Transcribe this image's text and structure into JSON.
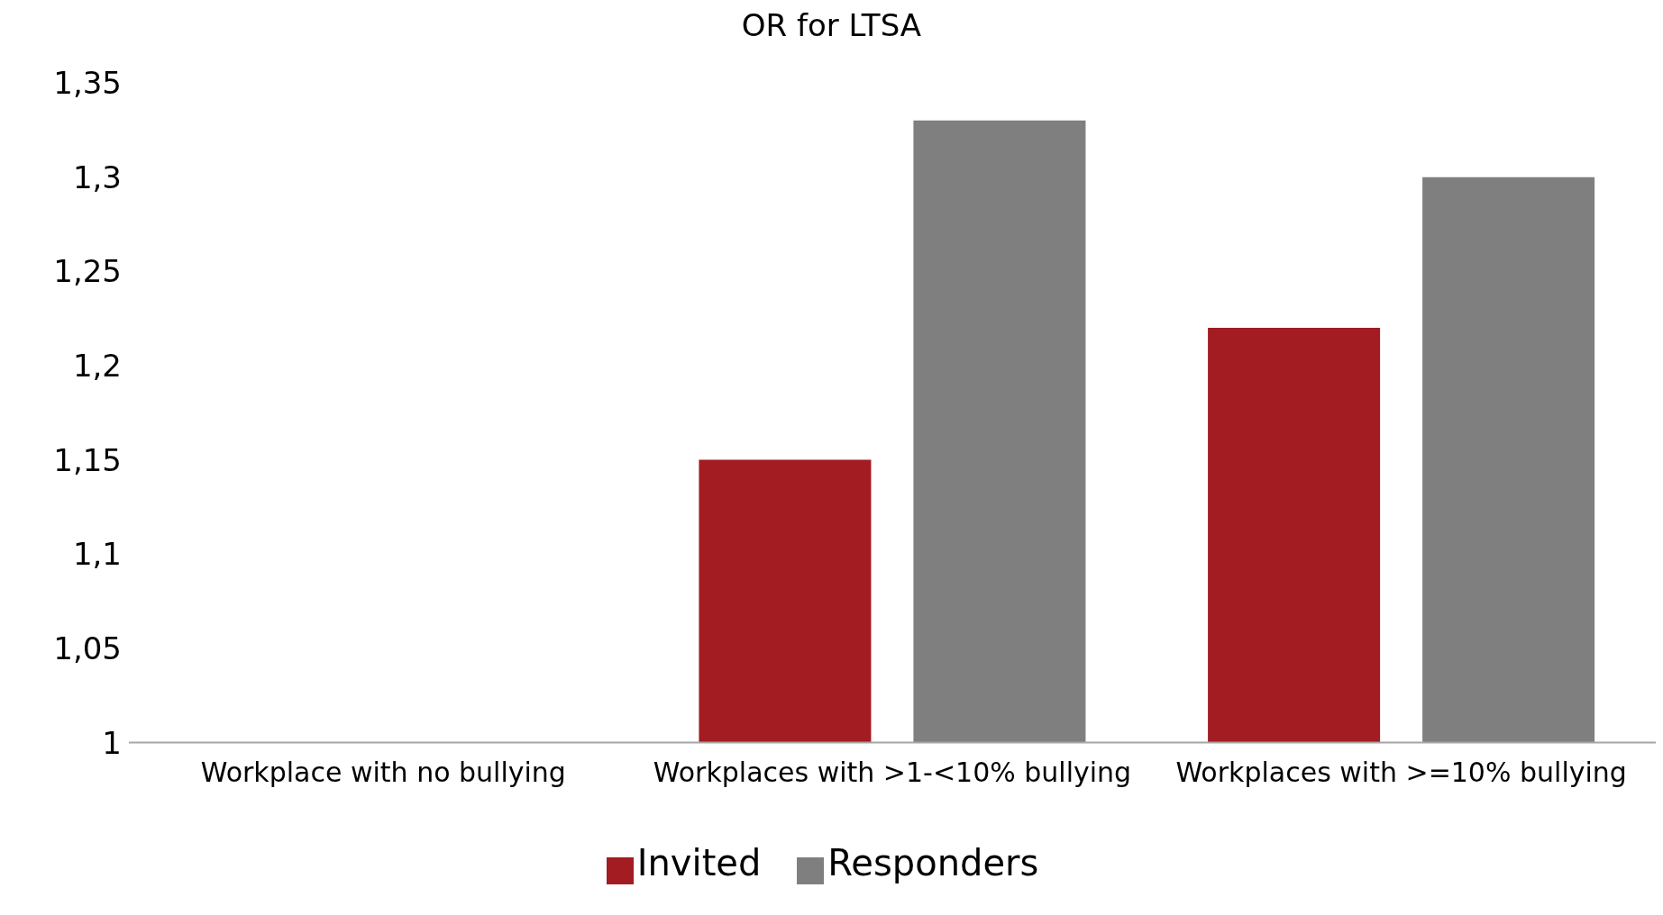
{
  "chart_data": {
    "type": "bar",
    "title": "OR for LTSA",
    "categories": [
      "Workplace with no bullying",
      "Workplaces with >1-<10% bullying",
      "Workplaces with >=10% bullying"
    ],
    "series": [
      {
        "name": "Invited",
        "color": "#a21c21",
        "values": [
          1,
          1.15,
          1.22
        ]
      },
      {
        "name": "Responders",
        "color": "#7f7f7f",
        "values": [
          1,
          1.33,
          1.3
        ]
      }
    ],
    "ylim": [
      1,
      1.35
    ],
    "yticks": [
      {
        "value": 1,
        "label": "1"
      },
      {
        "value": 1.05,
        "label": "1,05"
      },
      {
        "value": 1.1,
        "label": "1,1"
      },
      {
        "value": 1.15,
        "label": "1,15"
      },
      {
        "value": 1.2,
        "label": "1,2"
      },
      {
        "value": 1.25,
        "label": "1,25"
      },
      {
        "value": 1.3,
        "label": "1,3"
      },
      {
        "value": 1.35,
        "label": "1,35"
      }
    ],
    "grid": false,
    "legend": "bottom"
  }
}
